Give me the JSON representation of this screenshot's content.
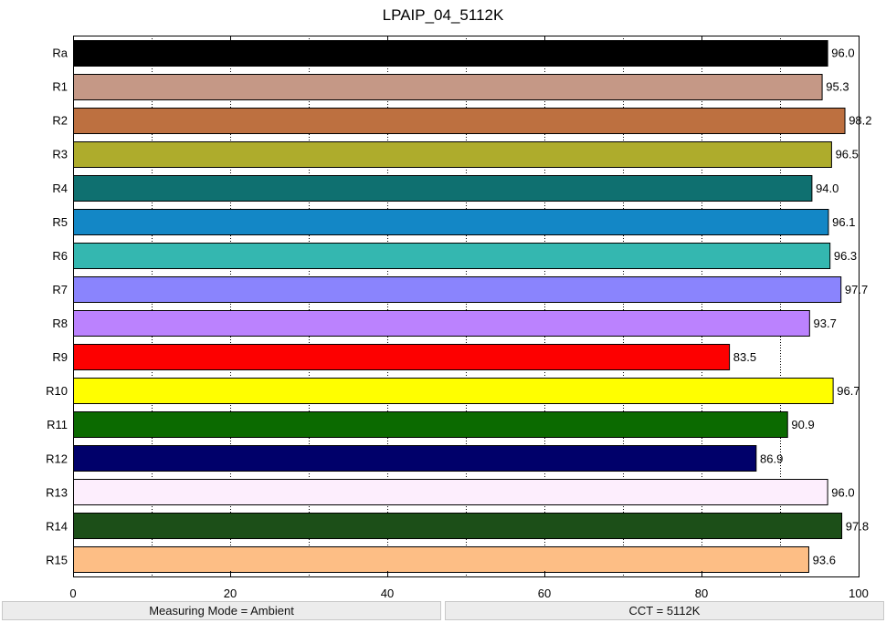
{
  "chart_data": {
    "type": "bar",
    "orientation": "horizontal",
    "title": "LPAIP_04_5112K",
    "categories": [
      "Ra",
      "R1",
      "R2",
      "R3",
      "R4",
      "R5",
      "R6",
      "R7",
      "R8",
      "R9",
      "R10",
      "R11",
      "R12",
      "R13",
      "R14",
      "R15"
    ],
    "values": [
      96.0,
      95.3,
      98.2,
      96.5,
      94.0,
      96.1,
      96.3,
      97.7,
      93.7,
      83.5,
      96.7,
      90.9,
      86.9,
      96.0,
      97.8,
      93.6
    ],
    "value_labels": [
      "96.0",
      "95.3",
      "98.2",
      "96.5",
      "94.0",
      "96.1",
      "96.3",
      "97.7",
      "93.7",
      "83.5",
      "96.7",
      "90.9",
      "86.9",
      "96.0",
      "97.8",
      "93.6"
    ],
    "colors": [
      "#000000",
      "#c59886",
      "#bd7040",
      "#aeac2c",
      "#0f7070",
      "#1387c6",
      "#34b7b0",
      "#8a84fd",
      "#bb82fe",
      "#fd0000",
      "#fffe00",
      "#0b6a00",
      "#00006a",
      "#fdeefd",
      "#1c4f18",
      "#fdbe85"
    ],
    "xlim": [
      0,
      100
    ],
    "xticks": [
      "0",
      "20",
      "40",
      "60",
      "80",
      "100"
    ],
    "grid": "vertical dotted",
    "xlabel": "",
    "ylabel": ""
  },
  "status": {
    "measuring_mode": "Measuring Mode = Ambient",
    "cct": "CCT = 5112K"
  }
}
